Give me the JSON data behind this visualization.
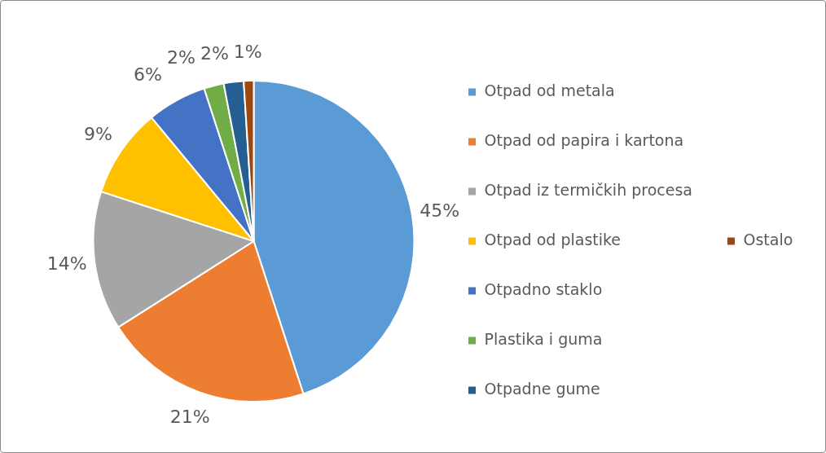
{
  "chart_data": {
    "type": "pie",
    "categories": [
      "Otpad od metala",
      "Otpad od papira i kartona",
      "Otpad iz termičkih procesa",
      "Otpad od plastike",
      "Otpadno staklo",
      "Plastika i guma",
      "Otpadne gume",
      "Ostalo"
    ],
    "values": [
      45,
      21,
      14,
      9,
      6,
      2,
      2,
      1
    ],
    "colors": [
      "#5b9bd5",
      "#ed7d31",
      "#a5a5a5",
      "#ffc000",
      "#4472c4",
      "#70ad47",
      "#255e91",
      "#9e480e"
    ],
    "value_labels": [
      "45%",
      "21%",
      "14%",
      "9%",
      "6%",
      "2%",
      "2%",
      "1%"
    ],
    "legend": "right"
  }
}
